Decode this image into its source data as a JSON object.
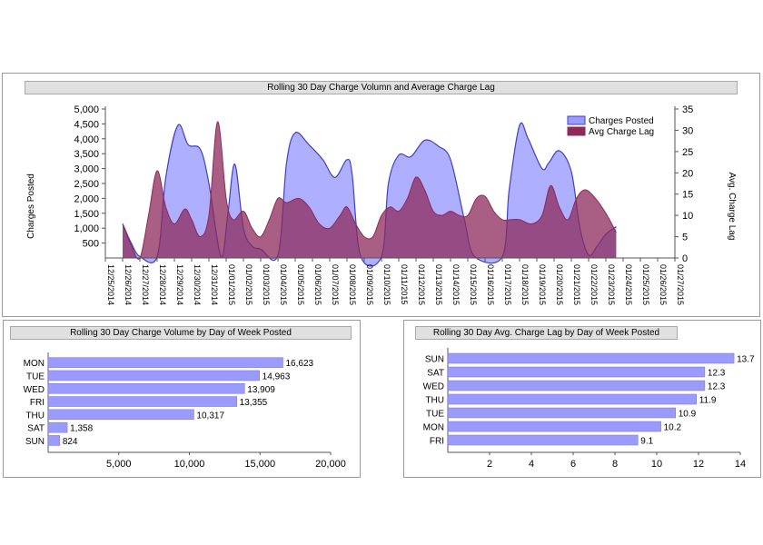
{
  "colors": {
    "charges": "#9b9bff",
    "charges_line": "#4040c8",
    "lag": "#8c2a5a",
    "bar": "#9b9bff",
    "bar_border": "#7070e0"
  },
  "chart_data": [
    {
      "type": "area",
      "title": "Rolling 30 Day Charge Volumn and Average Charge Lag",
      "ylabel": "Charges Posted",
      "y2label": "Avg. Charge Lag",
      "ylim": [
        0,
        5000
      ],
      "y2lim": [
        0,
        35
      ],
      "yticks": [
        "5,000",
        "4,500",
        "4,000",
        "3,500",
        "3,000",
        "2,500",
        "2,000",
        "1,500",
        "1,000",
        "500"
      ],
      "ytick_values": [
        5000,
        4500,
        4000,
        3500,
        3000,
        2500,
        2000,
        1500,
        1000,
        500
      ],
      "y2ticks": [
        35,
        30,
        25,
        20,
        15,
        10,
        5,
        0
      ],
      "legend": [
        "Charges Posted",
        "Avg Charge Lag"
      ],
      "legend_position": "top-right",
      "x": [
        "12/25/2014",
        "12/26/2014",
        "12/27/2014",
        "12/28/2014",
        "12/29/2014",
        "12/30/2014",
        "12/31/2014",
        "01/01/2015",
        "01/02/2015",
        "01/03/2015",
        "01/04/2015",
        "01/05/2015",
        "01/06/2015",
        "01/07/2015",
        "01/08/2015",
        "01/09/2015",
        "01/10/2015",
        "01/11/2015",
        "01/12/2015",
        "01/13/2015",
        "01/14/2015",
        "01/15/2015",
        "01/16/2015",
        "01/17/2015",
        "01/18/2015",
        "01/19/2015",
        "01/20/2015",
        "01/21/2015",
        "01/22/2015",
        "01/23/2015",
        "01/24/2015",
        "01/25/2015",
        "01/26/2015",
        "01/27/2015"
      ],
      "series": [
        {
          "name": "Charges Posted",
          "axis": "left",
          "points": [
            [
              1,
              1150
            ],
            [
              1.5,
              500
            ],
            [
              2,
              50
            ],
            [
              3,
              50
            ],
            [
              3.5,
              2700
            ],
            [
              4.2,
              4450
            ],
            [
              4.8,
              3800
            ],
            [
              5.5,
              3650
            ],
            [
              6,
              2500
            ],
            [
              6.7,
              50
            ],
            [
              7.1,
              1500
            ],
            [
              7.5,
              3150
            ],
            [
              8,
              1000
            ],
            [
              8.5,
              400
            ],
            [
              9,
              300
            ],
            [
              10,
              100
            ],
            [
              10.5,
              3200
            ],
            [
              11,
              4200
            ],
            [
              11.8,
              3800
            ],
            [
              12.6,
              3300
            ],
            [
              13.3,
              2700
            ],
            [
              14,
              3300
            ],
            [
              14.3,
              2800
            ],
            [
              14.8,
              50
            ],
            [
              16,
              50
            ],
            [
              16.4,
              2500
            ],
            [
              17,
              3450
            ],
            [
              17.7,
              3400
            ],
            [
              18.5,
              3950
            ],
            [
              19.3,
              3750
            ],
            [
              20,
              3300
            ],
            [
              20.8,
              1300
            ],
            [
              21.4,
              50
            ],
            [
              23,
              50
            ],
            [
              23.4,
              2300
            ],
            [
              24,
              4450
            ],
            [
              24.5,
              4000
            ],
            [
              25.3,
              3000
            ],
            [
              25.7,
              3200
            ],
            [
              26.3,
              3600
            ],
            [
              27,
              2900
            ],
            [
              27.5,
              1000
            ],
            [
              28,
              100
            ],
            [
              28.5,
              400
            ],
            [
              29,
              800
            ],
            [
              29.6,
              1050
            ]
          ]
        },
        {
          "name": "Avg Charge Lag",
          "axis": "right",
          "points": [
            [
              1,
              8
            ],
            [
              1.5,
              3
            ],
            [
              2,
              0
            ],
            [
              2.5,
              10
            ],
            [
              3,
              20.5
            ],
            [
              3.5,
              12
            ],
            [
              4,
              8
            ],
            [
              4.6,
              11.5
            ],
            [
              5,
              9
            ],
            [
              5.5,
              5
            ],
            [
              6,
              10
            ],
            [
              6.5,
              32
            ],
            [
              7,
              14
            ],
            [
              7.4,
              9
            ],
            [
              8,
              11
            ],
            [
              8.5,
              7
            ],
            [
              9,
              5
            ],
            [
              9.5,
              9
            ],
            [
              10,
              14
            ],
            [
              10.5,
              13
            ],
            [
              11.2,
              14
            ],
            [
              11.8,
              12
            ],
            [
              12.4,
              8
            ],
            [
              13,
              7
            ],
            [
              13.6,
              10
            ],
            [
              14,
              12
            ],
            [
              14.5,
              8
            ],
            [
              15,
              5
            ],
            [
              15.5,
              5
            ],
            [
              16,
              10
            ],
            [
              16.5,
              12
            ],
            [
              17,
              11
            ],
            [
              17.5,
              14
            ],
            [
              18,
              19
            ],
            [
              18.5,
              16
            ],
            [
              19,
              11
            ],
            [
              19.5,
              10
            ],
            [
              20,
              11
            ],
            [
              20.5,
              10
            ],
            [
              21,
              10
            ],
            [
              21.5,
              14
            ],
            [
              22,
              14.5
            ],
            [
              22.5,
              11
            ],
            [
              23,
              9
            ],
            [
              23.5,
              9
            ],
            [
              24,
              9
            ],
            [
              24.7,
              8
            ],
            [
              25.3,
              10
            ],
            [
              25.8,
              17
            ],
            [
              26.3,
              12
            ],
            [
              26.8,
              9
            ],
            [
              27.3,
              14
            ],
            [
              27.8,
              16
            ],
            [
              28.4,
              14
            ],
            [
              29,
              10.5
            ],
            [
              29.6,
              6
            ]
          ]
        }
      ]
    },
    {
      "type": "bar",
      "orientation": "horizontal",
      "title": "Rolling 30 Day Charge Volume by Day of Week Posted",
      "categories": [
        "MON",
        "TUE",
        "WED",
        "FRI",
        "THU",
        "SAT",
        "SUN"
      ],
      "values": [
        16623,
        14963,
        13909,
        13355,
        10317,
        1358,
        824
      ],
      "value_labels": [
        "16,623",
        "14,963",
        "13,909",
        "13,355",
        "10,317",
        "1,358",
        "824"
      ],
      "xlim": [
        0,
        20000
      ],
      "xticks": [
        "5,000",
        "10,000",
        "15,000",
        "20,000"
      ],
      "xtick_values": [
        5000,
        10000,
        15000,
        20000
      ]
    },
    {
      "type": "bar",
      "orientation": "horizontal",
      "title": "Rolling 30 Day Avg. Charge Lag by Day of Week Posted",
      "categories": [
        "SUN",
        "SAT",
        "WED",
        "THU",
        "TUE",
        "MON",
        "FRI"
      ],
      "values": [
        13.7,
        12.3,
        12.3,
        11.9,
        10.9,
        10.2,
        9.1
      ],
      "value_labels": [
        "13.7",
        "12.3",
        "12.3",
        "11.9",
        "10.9",
        "10.2",
        "9.1"
      ],
      "xlim": [
        0,
        14
      ],
      "xticks": [
        "2",
        "4",
        "6",
        "8",
        "10",
        "12",
        "14"
      ],
      "xtick_values": [
        2,
        4,
        6,
        8,
        10,
        12,
        14
      ]
    }
  ]
}
